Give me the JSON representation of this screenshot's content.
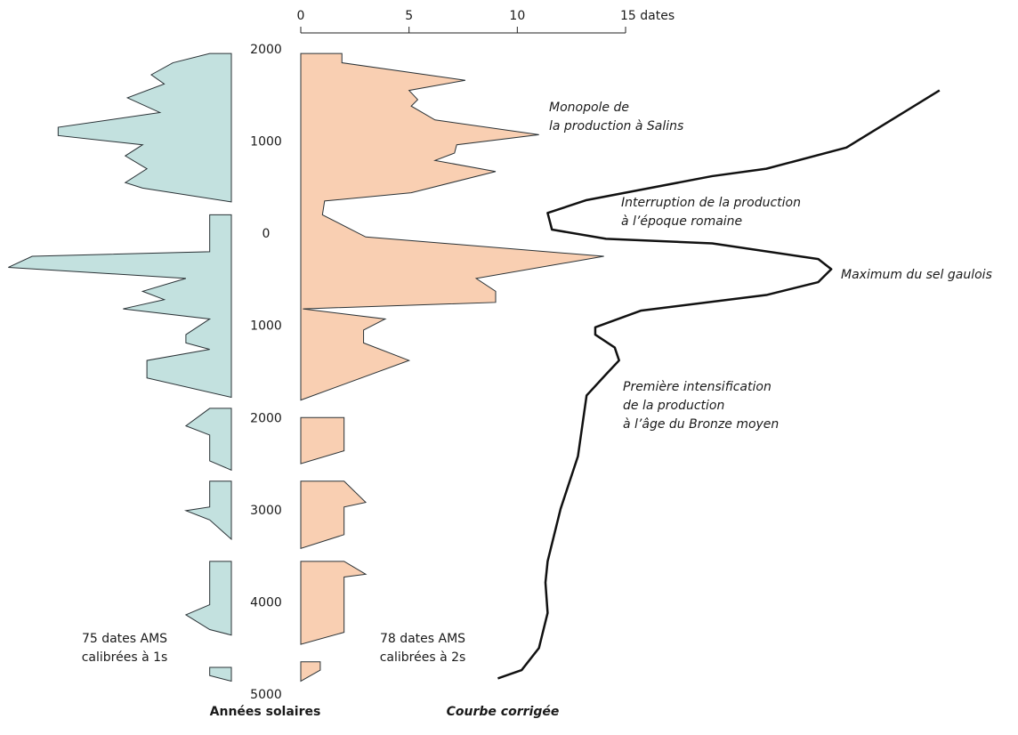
{
  "chart_data": {
    "type": "area",
    "xlim": [
      0,
      15
    ],
    "xticks": [
      0,
      5,
      10,
      {
        "value": 15,
        "label": "15 dates"
      }
    ],
    "ylim": [
      2000,
      -5000
    ],
    "yticks": [
      2000,
      1000,
      0,
      {
        "value": -1000,
        "label": "1000"
      },
      {
        "value": -2000,
        "label": "2000"
      },
      {
        "value": -3000,
        "label": "3000"
      },
      {
        "value": -4000,
        "label": "4000"
      },
      {
        "value": -5000,
        "label": "5000"
      }
    ],
    "ylabel": "Années solaires",
    "series": [
      {
        "name": "75 dates AMS\ncalibrées à 1s",
        "color": "#c3e1df",
        "direction": "left",
        "years": [
          1950,
          1850,
          1720,
          1620,
          1470,
          1310,
          1150,
          1060,
          960,
          840,
          700,
          550,
          490,
          340,
          null,
          200,
          -200,
          -250,
          -370,
          -490,
          -630,
          -720,
          -820,
          -930,
          -1100,
          -1190,
          -1260,
          -1380,
          -1570,
          -1780,
          null,
          -1900,
          -2090,
          -2190,
          -2470,
          -2570,
          null,
          -2690,
          -2970,
          -3010,
          -3110,
          -3320,
          null,
          -3560,
          -4030,
          -4140,
          -4300,
          -4360,
          null,
          -4710,
          -4800,
          -4860
        ],
        "values": [
          1,
          2.7,
          3.7,
          3.1,
          4.8,
          3.3,
          8,
          8,
          4.1,
          4.9,
          3.9,
          4.9,
          4.1,
          0,
          null,
          1,
          1,
          9.2,
          10.3,
          2.1,
          4.1,
          3.1,
          5,
          1,
          2.1,
          2.1,
          1,
          3.9,
          3.9,
          0,
          null,
          1,
          2.1,
          1,
          1,
          0,
          null,
          1,
          1,
          2.1,
          1,
          0,
          null,
          1,
          1,
          2.1,
          1,
          0,
          null,
          1,
          1,
          0
        ]
      },
      {
        "name": "78 dates AMS\ncalibrées à 2s",
        "color": "#f9cfb2",
        "direction": "right",
        "years": [
          1950,
          1850,
          1660,
          1550,
          1450,
          1380,
          1230,
          1070,
          960,
          870,
          790,
          670,
          440,
          350,
          200,
          -40,
          -250,
          -490,
          -630,
          -750,
          -820,
          -930,
          -1050,
          -1190,
          -1380,
          -1810,
          null,
          -2000,
          -2360,
          -2500,
          null,
          -2690,
          -2920,
          -2970,
          -3270,
          -3420,
          null,
          -3560,
          -3700,
          -3730,
          -4330,
          -4460,
          null,
          -4650,
          -4740,
          -4860
        ],
        "values": [
          1.9,
          1.9,
          7.6,
          5,
          5.4,
          5.1,
          6.2,
          11,
          7.2,
          7.1,
          6.2,
          9,
          5.1,
          1.1,
          1,
          3,
          14,
          8.1,
          9,
          9,
          0.1,
          3.9,
          2.9,
          2.9,
          5,
          0,
          null,
          2,
          2,
          0,
          null,
          2,
          3,
          2,
          2,
          0,
          null,
          2,
          3,
          2,
          2,
          0,
          null,
          0.9,
          0.9,
          0
        ]
      },
      {
        "name": "Courbe corrigée",
        "type": "line",
        "color": "#111111",
        "direction": "right",
        "years": [
          1550,
          930,
          700,
          620,
          360,
          220,
          40,
          -60,
          -110,
          -280,
          -390,
          -530,
          -670,
          -840,
          -1020,
          -1100,
          -1240,
          -1380,
          -1530,
          -1760,
          -2420,
          -2990,
          -3560,
          -3790,
          -4120,
          -4500,
          -4740,
          -4830
        ],
        "values": [
          29.5,
          25.2,
          21.5,
          19,
          13.2,
          11.4,
          11.6,
          14.1,
          19,
          23.9,
          24.5,
          23.9,
          21.5,
          15.7,
          13.6,
          13.6,
          14.5,
          14.7,
          14.1,
          13.2,
          12.8,
          12,
          11.4,
          11.3,
          11.4,
          11,
          10.2,
          9.1
        ]
      }
    ],
    "annotations": [
      {
        "text": "Monopole de\nla production à Salins"
      },
      {
        "text": "Interruption de la production\nà l’époque romaine"
      },
      {
        "text": "Maximum du sel gaulois"
      },
      {
        "text": "Première intensification\nde la production\nà l’âge du Bronze moyen"
      }
    ]
  }
}
